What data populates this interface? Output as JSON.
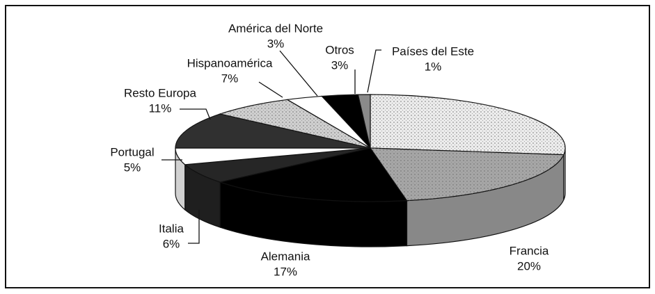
{
  "chart_data": {
    "type": "pie",
    "categories": [
      null,
      "Francia",
      "Alemania",
      "Italia",
      "Portugal",
      "Resto Europa",
      "Hispanoamérica",
      "América del Norte",
      "Otros",
      "Países del Este"
    ],
    "values": [
      27,
      20,
      17,
      6,
      5,
      11,
      7,
      3,
      3,
      1
    ],
    "value_labels": [
      null,
      "20%",
      "17%",
      "6%",
      "5%",
      "11%",
      "7%",
      "3%",
      "3%",
      "1%"
    ],
    "colors": [
      "#ececec",
      "#a6a6a6",
      "#000000",
      "#262626",
      "#ffffff",
      "#303030",
      "#cfcfcf",
      "#ffffff",
      "#000000",
      "#8a8a8a"
    ]
  }
}
